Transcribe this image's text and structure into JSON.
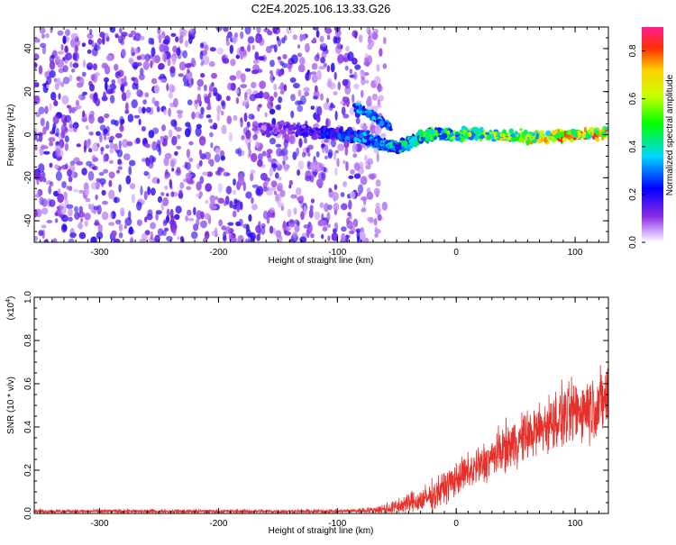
{
  "title": "C2E4.2025.106.13.33.G26",
  "chart_data": [
    {
      "type": "heatmap",
      "xlabel": "Height of straight line (km)",
      "ylabel": "Frequency (Hz)",
      "xlim": [
        -355,
        128
      ],
      "ylim": [
        -50,
        50
      ],
      "xticks": [
        -300,
        -200,
        -100,
        0,
        100
      ],
      "yticks": [
        -40,
        -20,
        0,
        20,
        40
      ],
      "colorbar": {
        "label": "Normalized spectral amplitude",
        "range": [
          0.0,
          0.9
        ],
        "ticks": [
          0.0,
          0.2,
          0.4,
          0.6,
          0.8
        ]
      },
      "noise_region_x": [
        -355,
        -80
      ],
      "signal_track": [
        {
          "x": -170,
          "y": 3,
          "a": 0.1
        },
        {
          "x": -130,
          "y": 2,
          "a": 0.15
        },
        {
          "x": -110,
          "y": 1,
          "a": 0.2
        },
        {
          "x": -95,
          "y": 0,
          "a": 0.25
        },
        {
          "x": -80,
          "y": -1,
          "a": 0.3
        },
        {
          "x": -70,
          "y": -3,
          "a": 0.3
        },
        {
          "x": -60,
          "y": -5,
          "a": 0.35
        },
        {
          "x": -50,
          "y": -6,
          "a": 0.35
        },
        {
          "x": -40,
          "y": -4,
          "a": 0.35
        },
        {
          "x": -30,
          "y": -1,
          "a": 0.4
        },
        {
          "x": -20,
          "y": 0,
          "a": 0.45
        },
        {
          "x": 0,
          "y": 0,
          "a": 0.5
        },
        {
          "x": 20,
          "y": 0,
          "a": 0.55
        },
        {
          "x": 50,
          "y": -1,
          "a": 0.6
        },
        {
          "x": 80,
          "y": -1,
          "a": 0.65
        },
        {
          "x": 100,
          "y": 0,
          "a": 0.7
        },
        {
          "x": 128,
          "y": 1,
          "a": 0.75
        }
      ],
      "secondary_track": [
        {
          "x": -85,
          "y": 13,
          "a": 0.3
        },
        {
          "x": -75,
          "y": 10,
          "a": 0.35
        },
        {
          "x": -65,
          "y": 7,
          "a": 0.3
        },
        {
          "x": -55,
          "y": 3,
          "a": 0.3
        }
      ]
    },
    {
      "type": "line",
      "xlabel": "Height of straight line (km)",
      "ylabel": "SNR (10 * v/v)",
      "scale_label": "(x10",
      "scale_exp": "4",
      "xlim": [
        -355,
        128
      ],
      "ylim": [
        0.0,
        1.0
      ],
      "xticks": [
        -300,
        -200,
        -100,
        0,
        100
      ],
      "yticks": [
        0.0,
        0.2,
        0.4,
        0.6,
        0.8,
        1.0
      ],
      "color": "#e8302a",
      "series": [
        {
          "x": [
            -355,
            -300,
            -200,
            -100,
            -70,
            -60,
            -50,
            -40,
            -30,
            -20,
            -10,
            0,
            10,
            20,
            30,
            40,
            50,
            60,
            70,
            80,
            90,
            100,
            110,
            120,
            128
          ],
          "y": [
            0.01,
            0.01,
            0.01,
            0.01,
            0.015,
            0.02,
            0.03,
            0.05,
            0.06,
            0.08,
            0.12,
            0.16,
            0.19,
            0.22,
            0.26,
            0.3,
            0.33,
            0.36,
            0.39,
            0.42,
            0.45,
            0.47,
            0.49,
            0.51,
            0.53
          ],
          "spread": [
            0.01,
            0.01,
            0.01,
            0.01,
            0.015,
            0.03,
            0.04,
            0.05,
            0.06,
            0.07,
            0.08,
            0.08,
            0.09,
            0.1,
            0.1,
            0.11,
            0.12,
            0.12,
            0.13,
            0.14,
            0.15,
            0.15,
            0.16,
            0.16,
            0.17
          ]
        }
      ]
    }
  ]
}
